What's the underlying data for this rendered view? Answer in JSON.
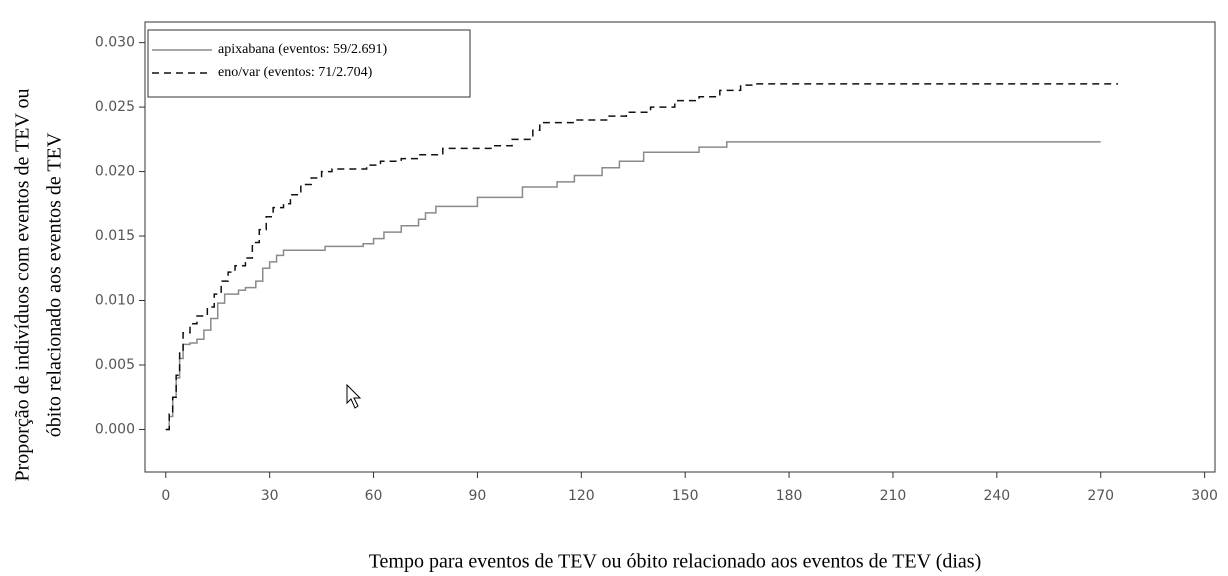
{
  "chart_data": {
    "type": "step",
    "x_label": "Tempo para eventos de TEV ou óbito relacionado aos eventos de TEV (dias)",
    "y_label": [
      "Proporção de indivíduos com eventos de TEV ou",
      "óbito relacionado aos eventos de TEV"
    ],
    "xlim": [
      -6,
      303
    ],
    "ylim": [
      -0.0033,
      0.0316
    ],
    "xticks": [
      0,
      30,
      60,
      90,
      120,
      150,
      180,
      210,
      240,
      270,
      300
    ],
    "yticks": [
      {
        "value": 0,
        "label": "0.000"
      },
      {
        "value": 0.005,
        "label": "0.005"
      },
      {
        "value": 0.01,
        "label": "0.010"
      },
      {
        "value": 0.015,
        "label": "0.015"
      },
      {
        "value": 0.02,
        "label": "0.020"
      },
      {
        "value": 0.025,
        "label": "0.025"
      },
      {
        "value": 0.03,
        "label": "0.030"
      }
    ],
    "legend": "top-left",
    "series": [
      {
        "name": "apixabana (eventos: 59/2.691)",
        "color": "#8a8a8a",
        "line_style": "solid",
        "x": [
          0,
          1,
          2,
          3,
          4,
          5,
          7,
          9,
          11,
          13,
          15,
          17,
          21,
          23,
          26,
          28,
          30,
          32,
          34,
          46,
          57,
          60,
          63,
          68,
          73,
          75,
          78,
          90,
          103,
          113,
          118,
          126,
          131,
          138,
          154,
          162,
          270
        ],
        "values": [
          0,
          0.001,
          0.0025,
          0.004,
          0.0055,
          0.0066,
          0.0067,
          0.007,
          0.0077,
          0.0086,
          0.0098,
          0.0105,
          0.0108,
          0.011,
          0.0115,
          0.0125,
          0.013,
          0.0135,
          0.0139,
          0.0142,
          0.0144,
          0.0148,
          0.0153,
          0.0158,
          0.0163,
          0.0168,
          0.0173,
          0.018,
          0.0188,
          0.0192,
          0.0197,
          0.0203,
          0.0208,
          0.0215,
          0.0219,
          0.0223,
          0.0223
        ]
      },
      {
        "name": "eno/var (eventos: 71/2.704)",
        "color": "#111111",
        "line_style": "dashed",
        "x": [
          0,
          1,
          2,
          3,
          4,
          5,
          7,
          9,
          12,
          14,
          16,
          18,
          20,
          23,
          25,
          27,
          29,
          31,
          34,
          36,
          39,
          42,
          45,
          48,
          58,
          62,
          68,
          73,
          80,
          95,
          100,
          106,
          108,
          118,
          128,
          133,
          140,
          147,
          154,
          160,
          166,
          170,
          275
        ],
        "values": [
          0,
          0.0012,
          0.0025,
          0.0042,
          0.006,
          0.0075,
          0.0082,
          0.0088,
          0.0095,
          0.0105,
          0.0115,
          0.0122,
          0.0127,
          0.0133,
          0.0145,
          0.0155,
          0.0165,
          0.0172,
          0.0175,
          0.0182,
          0.019,
          0.0195,
          0.02,
          0.0202,
          0.0205,
          0.0208,
          0.021,
          0.0213,
          0.0218,
          0.022,
          0.0225,
          0.0232,
          0.0238,
          0.024,
          0.0243,
          0.0246,
          0.025,
          0.0255,
          0.0258,
          0.0263,
          0.0267,
          0.0268,
          0.0268
        ]
      }
    ]
  }
}
